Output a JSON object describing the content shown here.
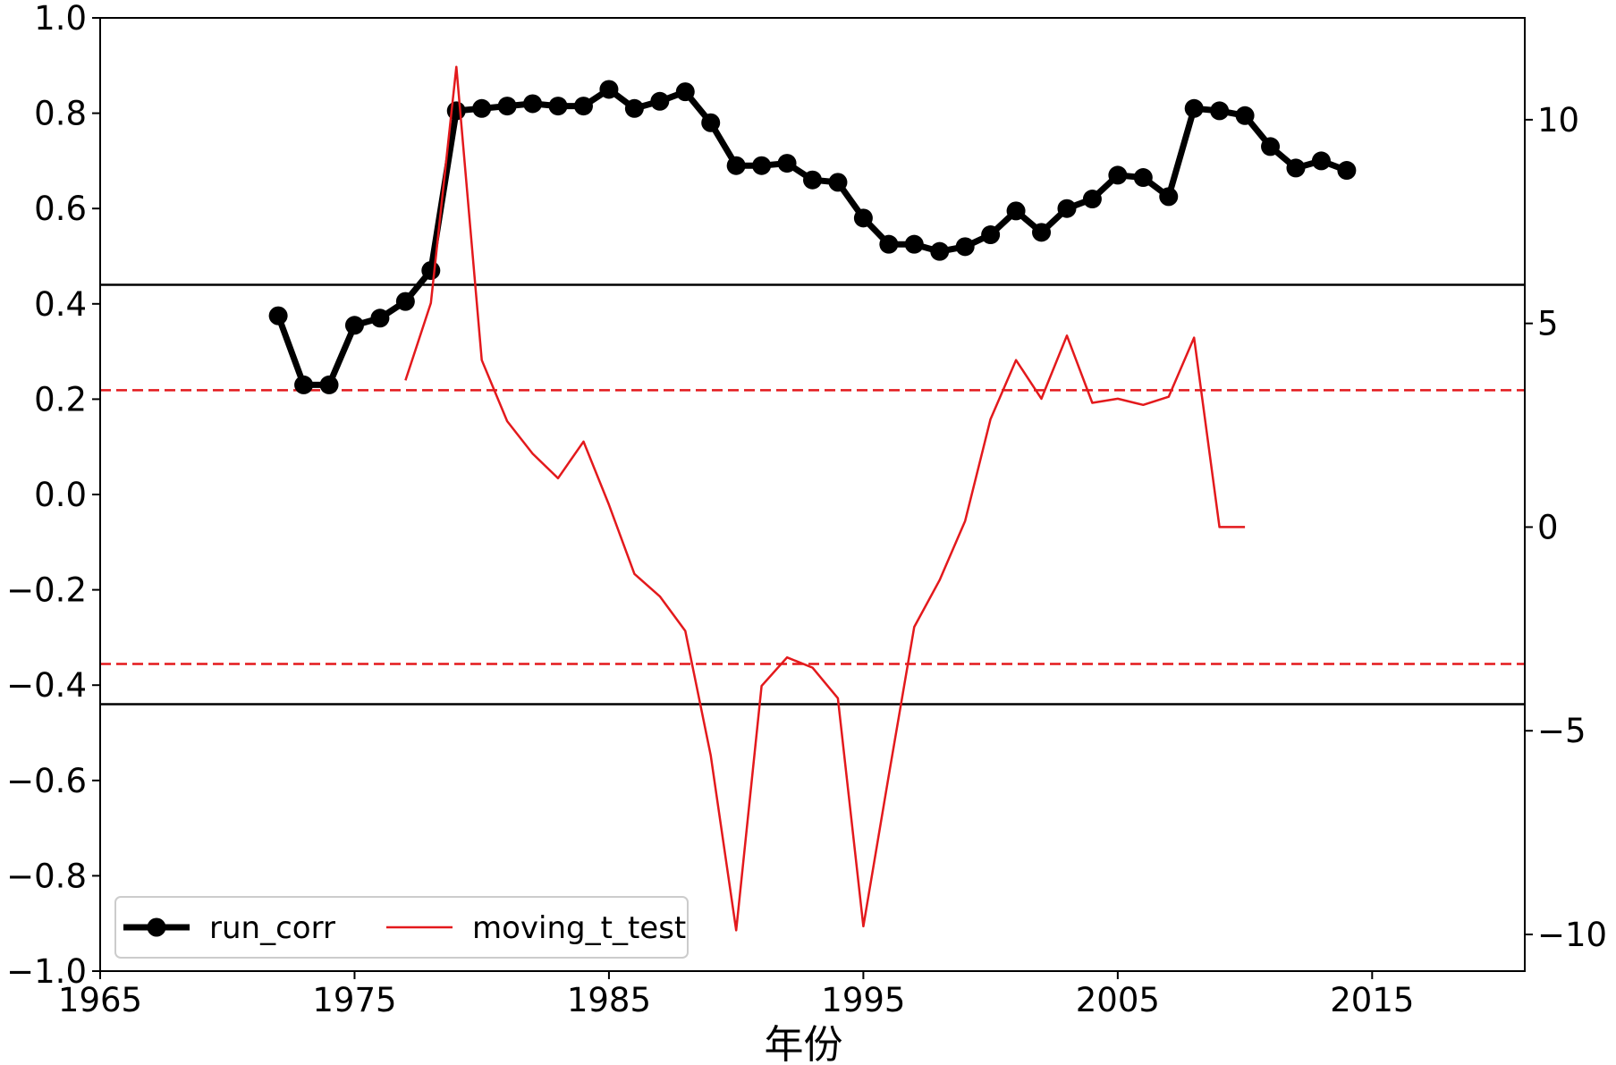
{
  "chart_data": {
    "type": "line",
    "xlabel": "年份",
    "xlim": [
      1965,
      2021
    ],
    "ylim_left": [
      -1.0,
      1.0
    ],
    "ylim_right": [
      -10.9,
      12.5
    ],
    "x_ticks": [
      1965,
      1975,
      1985,
      1995,
      2005,
      2015
    ],
    "y_left_ticks": [
      {
        "value": 1.0,
        "label": "1.0"
      },
      {
        "value": 0.8,
        "label": "0.8"
      },
      {
        "value": 0.6,
        "label": "0.6"
      },
      {
        "value": 0.4,
        "label": "0.4"
      },
      {
        "value": 0.2,
        "label": "0.2"
      },
      {
        "value": 0.0,
        "label": "0.0"
      },
      {
        "value": -0.2,
        "label": "−0.2"
      },
      {
        "value": -0.4,
        "label": "−0.4"
      },
      {
        "value": -0.6,
        "label": "−0.6"
      },
      {
        "value": -0.8,
        "label": "−0.8"
      },
      {
        "value": -1.0,
        "label": "−1.0"
      }
    ],
    "y_right_ticks": [
      {
        "value": 10,
        "label": "10"
      },
      {
        "value": 5,
        "label": "5"
      },
      {
        "value": 0,
        "label": "0"
      },
      {
        "value": -5,
        "label": "−5"
      },
      {
        "value": -10,
        "label": "−10"
      }
    ],
    "reference_lines": [
      {
        "axis": "left",
        "value": 0.44,
        "color": "#000000",
        "style": "solid"
      },
      {
        "axis": "left",
        "value": -0.44,
        "color": "#000000",
        "style": "solid"
      },
      {
        "axis": "right",
        "value": 3.36,
        "color": "#e3191c",
        "style": "dashed"
      },
      {
        "axis": "right",
        "value": -3.36,
        "color": "#e3191c",
        "style": "dashed"
      }
    ],
    "series": [
      {
        "name": "run_corr",
        "axis": "left",
        "color": "#000000",
        "marker": "circle",
        "x": [
          1972,
          1973,
          1974,
          1975,
          1976,
          1977,
          1978,
          1979,
          1980,
          1981,
          1982,
          1983,
          1984,
          1985,
          1986,
          1987,
          1988,
          1989,
          1990,
          1991,
          1992,
          1993,
          1994,
          1995,
          1996,
          1997,
          1998,
          1999,
          2000,
          2001,
          2002,
          2003,
          2004,
          2005,
          2006,
          2007,
          2008,
          2009,
          2010,
          2011,
          2012,
          2013,
          2014
        ],
        "y": [
          0.375,
          0.23,
          0.23,
          0.355,
          0.37,
          0.405,
          0.47,
          0.805,
          0.81,
          0.815,
          0.82,
          0.815,
          0.815,
          0.85,
          0.81,
          0.825,
          0.845,
          0.78,
          0.69,
          0.69,
          0.695,
          0.66,
          0.655,
          0.58,
          0.525,
          0.525,
          0.51,
          0.52,
          0.545,
          0.595,
          0.55,
          0.6,
          0.62,
          0.67,
          0.665,
          0.625,
          0.81,
          0.805,
          0.795,
          0.73,
          0.685,
          0.7,
          0.68
        ]
      },
      {
        "name": "moving_t_test",
        "axis": "right",
        "color": "#e3191c",
        "marker": "none",
        "x": [
          1977,
          1978,
          1979,
          1980,
          1981,
          1982,
          1983,
          1984,
          1985,
          1986,
          1987,
          1988,
          1989,
          1990,
          1991,
          1992,
          1993,
          1994,
          1995,
          1996,
          1997,
          1998,
          1999,
          2000,
          2001,
          2002,
          2003,
          2004,
          2005,
          2006,
          2007,
          2008,
          2009,
          2010
        ],
        "y": [
          3.6,
          5.5,
          11.3,
          4.1,
          2.6,
          1.8,
          1.2,
          2.1,
          0.55,
          -1.15,
          -1.7,
          -2.55,
          -5.6,
          -9.9,
          -3.9,
          -3.2,
          -3.45,
          -4.2,
          -9.8,
          -6.1,
          -2.45,
          -1.3,
          0.15,
          2.65,
          4.1,
          3.15,
          4.7,
          3.05,
          3.15,
          3.0,
          3.2,
          4.65,
          0.0,
          0.0
        ]
      }
    ],
    "legend": {
      "position": "lower-left",
      "ncol": 2
    }
  }
}
